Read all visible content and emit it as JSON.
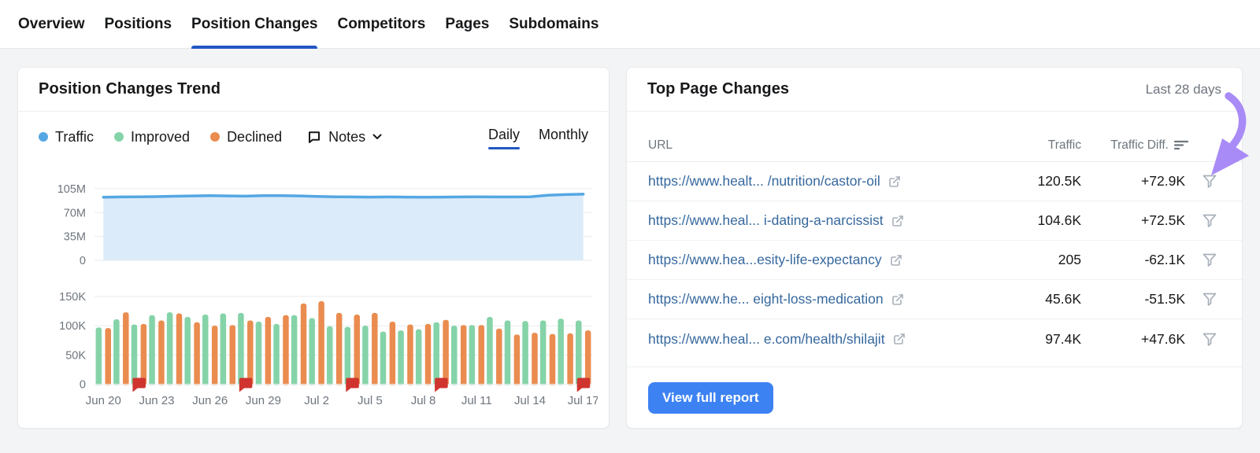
{
  "tabs": {
    "items": [
      {
        "label": "Overview",
        "active": false
      },
      {
        "label": "Positions",
        "active": false
      },
      {
        "label": "Position Changes",
        "active": true
      },
      {
        "label": "Competitors",
        "active": false
      },
      {
        "label": "Pages",
        "active": false
      },
      {
        "label": "Subdomains",
        "active": false
      }
    ]
  },
  "trend_panel": {
    "title": "Position Changes Trend",
    "legend": [
      {
        "label": "Traffic",
        "color": "#55a7e3"
      },
      {
        "label": "Improved",
        "color": "#85d3a8"
      },
      {
        "label": "Declined",
        "color": "#ea8c4f"
      }
    ],
    "notes_label": "Notes",
    "view_tabs": [
      {
        "label": "Daily",
        "active": true
      },
      {
        "label": "Monthly",
        "active": false
      }
    ]
  },
  "chart_data": [
    {
      "type": "area",
      "name": "Traffic",
      "x": [
        "Jun 20",
        "Jun 21",
        "Jun 22",
        "Jun 23",
        "Jun 24",
        "Jun 25",
        "Jun 26",
        "Jun 27",
        "Jun 28",
        "Jun 29",
        "Jun 30",
        "Jul 1",
        "Jul 2",
        "Jul 3",
        "Jul 4",
        "Jul 5",
        "Jul 6",
        "Jul 7",
        "Jul 8",
        "Jul 9",
        "Jul 10",
        "Jul 11",
        "Jul 12",
        "Jul 13",
        "Jul 14",
        "Jul 15",
        "Jul 16",
        "Jul 17"
      ],
      "values_millions": [
        92.5,
        93,
        93.2,
        93.5,
        94,
        94.5,
        94.8,
        94.5,
        94.2,
        94.8,
        95,
        94.5,
        93.8,
        93.2,
        93,
        92.8,
        93,
        92.8,
        92.6,
        92.8,
        93,
        93.2,
        93,
        93,
        93.2,
        95.5,
        96.5,
        97
      ],
      "ylim_millions": [
        0,
        105
      ],
      "yticks": [
        "105M",
        "70M",
        "35M",
        "0"
      ],
      "line_color": "#55a7e3",
      "fill_color": "#dcebf9",
      "grid": true
    },
    {
      "type": "bar",
      "categories": [
        "Jun 20",
        "Jun 21",
        "Jun 22",
        "Jun 23",
        "Jun 24",
        "Jun 25",
        "Jun 26",
        "Jun 27",
        "Jun 28",
        "Jun 29",
        "Jun 30",
        "Jul 1",
        "Jul 2",
        "Jul 3",
        "Jul 4",
        "Jul 5",
        "Jul 6",
        "Jul 7",
        "Jul 8",
        "Jul 9",
        "Jul 10",
        "Jul 11",
        "Jul 12",
        "Jul 13",
        "Jul 14",
        "Jul 15",
        "Jul 16",
        "Jul 17"
      ],
      "series": [
        {
          "name": "Improved",
          "color": "#85d3a8",
          "values_thousands": [
            97,
            111,
            102,
            118,
            123,
            115,
            119,
            121,
            122,
            107,
            103,
            118,
            113,
            99,
            98,
            100,
            90,
            92,
            94,
            106,
            100,
            101,
            115,
            109,
            108,
            109,
            112,
            109
          ]
        },
        {
          "name": "Declined",
          "color": "#ea8c4f",
          "values_thousands": [
            96,
            123,
            103,
            109,
            121,
            106,
            100,
            101,
            109,
            115,
            118,
            138,
            142,
            122,
            119,
            122,
            107,
            102,
            103,
            110,
            101,
            101,
            95,
            85,
            88,
            86,
            87,
            92
          ]
        }
      ],
      "ylim_thousands": [
        0,
        150
      ],
      "yticks": [
        "150K",
        "100K",
        "50K",
        "0"
      ],
      "x_tick_labels": [
        "Jun 20",
        "Jun 23",
        "Jun 26",
        "Jun 29",
        "Jul 2",
        "Jul 5",
        "Jul 8",
        "Jul 11",
        "Jul 14",
        "Jul 17"
      ],
      "note_flag_dates": [
        "Jun 22",
        "Jun 28",
        "Jul 4",
        "Jul 9",
        "Jul 17"
      ],
      "note_flag_color": "#d0342f",
      "grid": true,
      "legend_position": "top-left"
    }
  ],
  "top_pages": {
    "title": "Top Page Changes",
    "period": "Last 28 days",
    "columns": [
      "URL",
      "Traffic",
      "Traffic Diff."
    ],
    "rows": [
      {
        "url": "https://www.healt... /nutrition/castor-oil",
        "traffic": "120.5K",
        "diff": "+72.9K"
      },
      {
        "url": "https://www.heal... i-dating-a-narcissist",
        "traffic": "104.6K",
        "diff": "+72.5K"
      },
      {
        "url": "https://www.hea...esity-life-expectancy",
        "traffic": "205",
        "diff": "-62.1K"
      },
      {
        "url": "https://www.he... eight-loss-medication",
        "traffic": "45.6K",
        "diff": "-51.5K"
      },
      {
        "url": "https://www.heal... e.com/health/shilajit",
        "traffic": "97.4K",
        "diff": "+47.6K"
      }
    ],
    "button_label": "View full report"
  },
  "colors": {
    "accent_blue": "#2257c4",
    "button_blue": "#3d82f2",
    "link_blue": "#36689e",
    "annotation_purple": "#a98bf7",
    "icon_gray": "#a8b0ba",
    "axis_gray": "#6e757d",
    "grid_gray": "#e9ebee"
  }
}
